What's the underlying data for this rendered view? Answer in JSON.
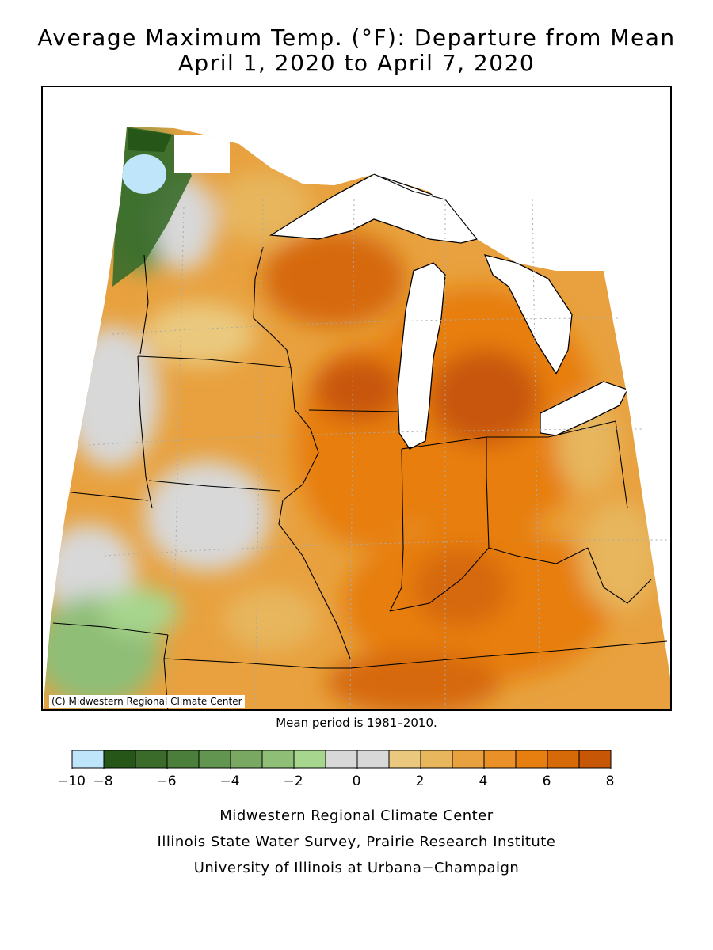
{
  "title_line1": "Average Maximum Temp. (°F): Departure from Mean",
  "title_line2": "April 1, 2020 to April 7, 2020",
  "map_credit": "(C) Midwestern Regional Climate Center",
  "mean_period": "Mean period is 1981–2010.",
  "legend": {
    "colors": [
      "#bfe5fb",
      "#265718",
      "#3a6b2a",
      "#4b7e3a",
      "#62954f",
      "#79a863",
      "#8fbe77",
      "#a7d68e",
      "#d8d8d8",
      "#d8d8d8",
      "#eac97f",
      "#e7b65d",
      "#e8a13e",
      "#e99029",
      "#e77e10",
      "#d66908",
      "#c85607"
    ],
    "tick_labels": [
      "−10",
      "−8",
      "−6",
      "−4",
      "−2",
      "0",
      "2",
      "4",
      "6",
      "8"
    ]
  },
  "footer": {
    "line1": "Midwestern Regional Climate Center",
    "line2": "Illinois State Water Survey, Prairie Research Institute",
    "line3": "University of Illinois at Urbana−Champaign"
  }
}
